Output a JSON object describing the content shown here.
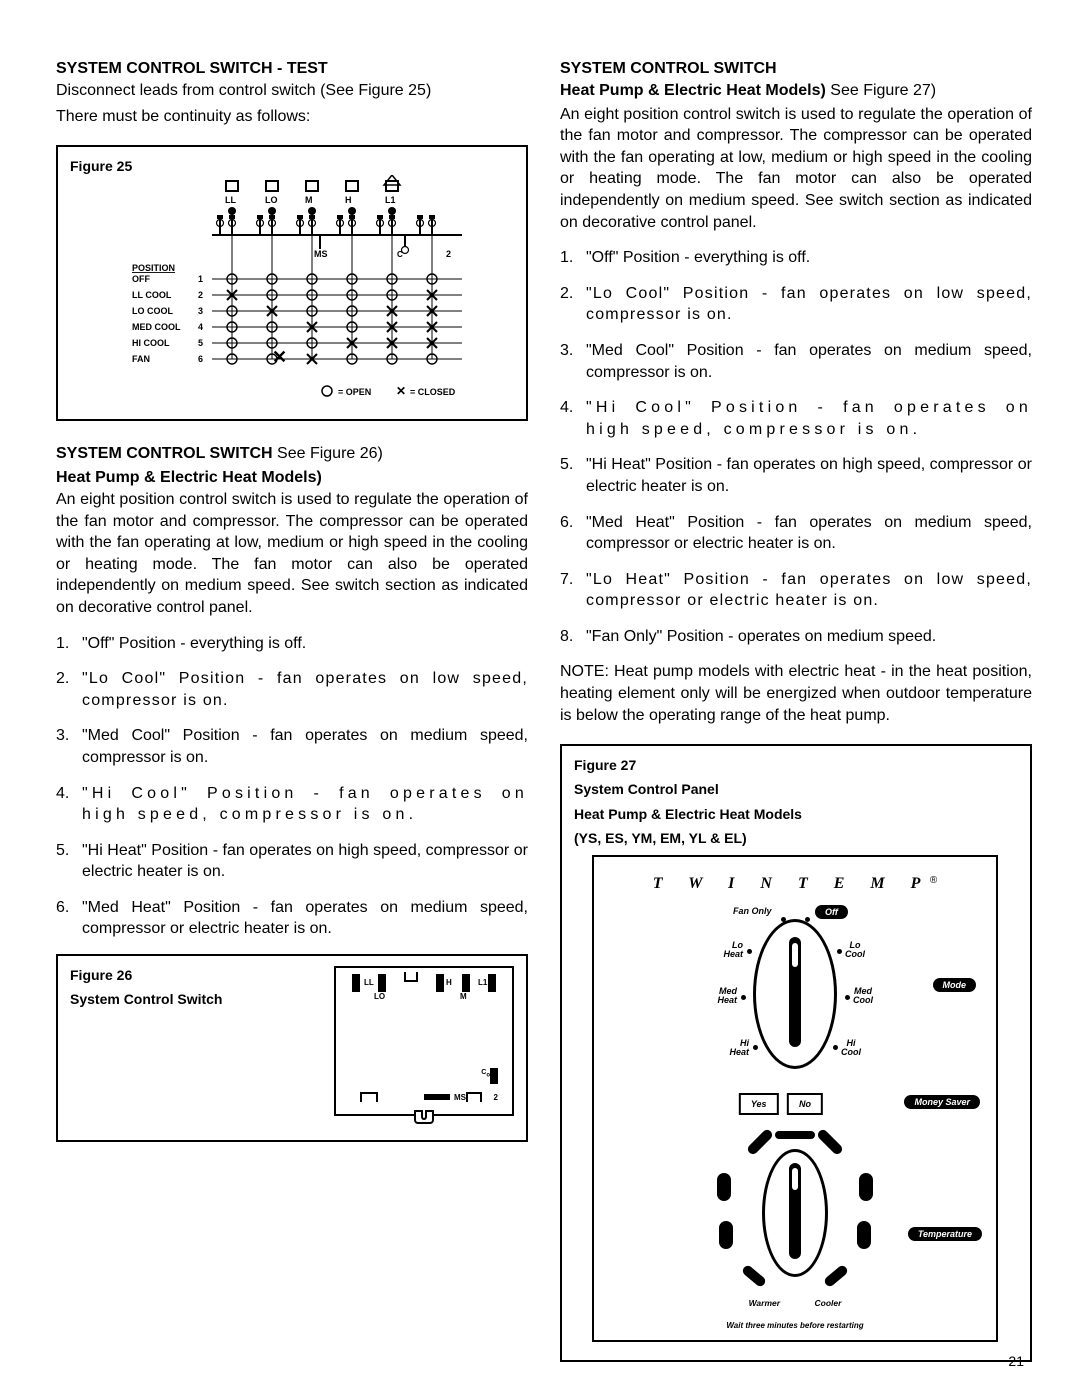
{
  "page_number": "21",
  "left": {
    "h1": "SYSTEM CONTROL SWITCH - TEST",
    "intro1": "Disconnect leads from control switch (See Figure 25)",
    "intro2": "There must be continuity as follows:",
    "fig25": {
      "label": "Figure 25",
      "terminals": [
        "LL",
        "LO",
        "M",
        "H",
        "L1"
      ],
      "position_header": "POSITION",
      "positions": [
        "OFF",
        "LL COOL",
        "LO COOL",
        "MED COOL",
        "HI COOL",
        "FAN"
      ],
      "position_nums": [
        "1",
        "2",
        "3",
        "4",
        "5",
        "6"
      ],
      "ms_label": "MS",
      "c_label": "C",
      "two_label": "2",
      "legend_open": "= OPEN",
      "legend_closed": "= CLOSED",
      "closed_cells": [
        [
          1,
          0
        ],
        [
          2,
          1
        ],
        [
          3,
          2
        ],
        [
          4,
          3
        ],
        [
          2,
          4
        ],
        [
          3,
          4
        ],
        [
          4,
          4
        ],
        [
          1,
          5
        ],
        [
          2,
          5
        ],
        [
          3,
          5
        ],
        [
          4,
          5
        ],
        [
          5,
          2
        ]
      ]
    },
    "h2a": "SYSTEM CONTROL SWITCH",
    "h2a_suffix": " See Figure 26)",
    "h2b": "Heat Pump & Electric Heat Models)",
    "para": "An eight position control switch is used to regulate the operation of the fan motor and compressor. The compressor can be operated with the fan operating at low, medium or high speed in the cooling or heating mode. The fan motor can also be operated independently on medium speed. See switch section as indicated on decorative control panel.",
    "list": [
      "\"Off\" Position - everything is off.",
      "\"Lo Cool\" Position - fan operates on low speed, compressor is on.",
      "\"Med Cool\" Position - fan operates on medium speed, compressor is on.",
      "\"Hi Cool\" Position - fan operates on high speed, compressor is on.",
      "\"Hi Heat\" Position - fan operates on high speed, compressor or electric heater is on.",
      "\"Med Heat\" Position - fan operates on medium speed, compressor or electric heater is on."
    ],
    "fig26": {
      "label_line1": "Figure 26",
      "label_line2": "System Control Switch",
      "terms": {
        "LL": "LL",
        "LO": "LO",
        "H": "H",
        "M": "M",
        "L1": "L1",
        "C": "C",
        "MS": "MS",
        "2": "2"
      }
    }
  },
  "right": {
    "h1": "SYSTEM CONTROL SWITCH",
    "h1b": "Heat Pump & Electric Heat Models)",
    "h1b_suffix": "  See Figure 27)",
    "para": "An eight position control switch is used to regulate the operation of the fan motor and compressor. The compressor can be operated with the fan operating at low, medium or high speed in the cooling or heating mode. The fan motor can also be operated independently on medium speed. See switch section as indicated on decorative control panel.",
    "list": [
      "\"Off\" Position - everything is off.",
      "\"Lo Cool\" Position - fan operates on low speed, compressor is on.",
      "\"Med Cool\" Position - fan operates on medium speed, compressor is on.",
      "\"Hi Cool\" Position - fan operates on high speed, compressor is on.",
      "\"Hi Heat\" Position - fan operates on high speed, compressor or electric heater is on.",
      "\"Med Heat\" Position - fan operates on medium speed, compressor or electric heater is on.",
      "\"Lo Heat\" Position - fan operates on low speed, compressor or electric heater is on.",
      "\"Fan Only\" Position - operates on medium speed."
    ],
    "note": "NOTE: Heat pump models with electric heat - in the heat position, heating element only will be energized when outdoor temperature is below the operating range of the heat pump.",
    "fig27": {
      "label_line1": "Figure 27",
      "label_line2": "System Control Panel",
      "label_line3": "Heat Pump & Electric Heat Models",
      "label_line4": "(YS, ES, YM, EM,  YL & EL)",
      "brand": "T W I N T E M P",
      "reg": "®",
      "positions": {
        "fan_only": "Fan Only",
        "off": "Off",
        "lo_heat": "Lo\nHeat",
        "lo_cool": "Lo\nCool",
        "med_heat": "Med\nHeat",
        "med_cool": "Med\nCool",
        "hi_heat": "Hi\nHeat",
        "hi_cool": "Hi\nCool"
      },
      "mode": "Mode",
      "yes": "Yes",
      "no": "No",
      "money_saver": "Money Saver",
      "temperature": "Temperature",
      "warmer": "Warmer",
      "cooler": "Cooler",
      "footnote": "Wait three minutes before restarting"
    }
  }
}
